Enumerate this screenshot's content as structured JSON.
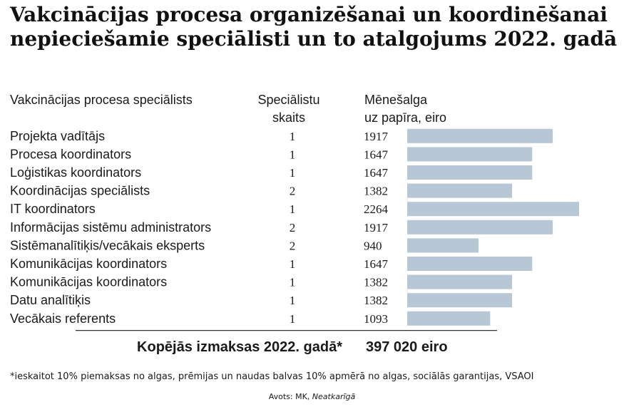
{
  "title": "Vakcinācijas procesa organizēšanai un koordinēšanai nepieciešamie speciālisti un to atalgojums 2022. gadā",
  "headers": {
    "specialist": "Vakcinācijas procesa speciālists",
    "count_line1": "Speciālistu",
    "count_line2": "skaits",
    "salary_line1": "Mēnešalga",
    "salary_line2": "uz papīra, eiro"
  },
  "chart_data": {
    "type": "bar",
    "orientation": "horizontal",
    "title": "Vakcinācijas procesa organizēšanai un koordinēšanai nepieciešamie speciālisti un to atalgojums 2022. gadā",
    "xlabel": "Mēnešalga uz papīra, eiro",
    "ylabel": "Vakcinācijas procesa speciālists",
    "categories": [
      "Projekta vadītājs",
      "Procesa koordinators",
      "Loģistikas koordinators",
      "Koordinācijas speciālists",
      "IT koordinators",
      "Informācijas sistēmu administrators",
      "Sistēmanalītiķis/vecākais eksperts",
      "Komunikācijas koordinators",
      "Komunikācijas koordinators",
      "Datu analītiķis",
      "Vecākais referents"
    ],
    "counts": [
      1,
      1,
      1,
      2,
      1,
      2,
      2,
      1,
      1,
      1,
      1
    ],
    "values": [
      1917,
      1647,
      1647,
      1382,
      2264,
      1917,
      940,
      1647,
      1382,
      1382,
      1093
    ],
    "xlim": [
      0,
      2264
    ],
    "grid": false,
    "bar_color": "#b8c7d6"
  },
  "total": {
    "label": "Kopējās izmaksas 2022. gadā*",
    "value": "397 020 eiro"
  },
  "footnote": "*ieskaitot 10% piemaksas no algas, prēmijas un naudas balvas 10% apmērā no algas, sociālās garantijas, VSAOI",
  "source": {
    "prefix": "Avots: MK, ",
    "publication": "Neatkarīgā"
  }
}
